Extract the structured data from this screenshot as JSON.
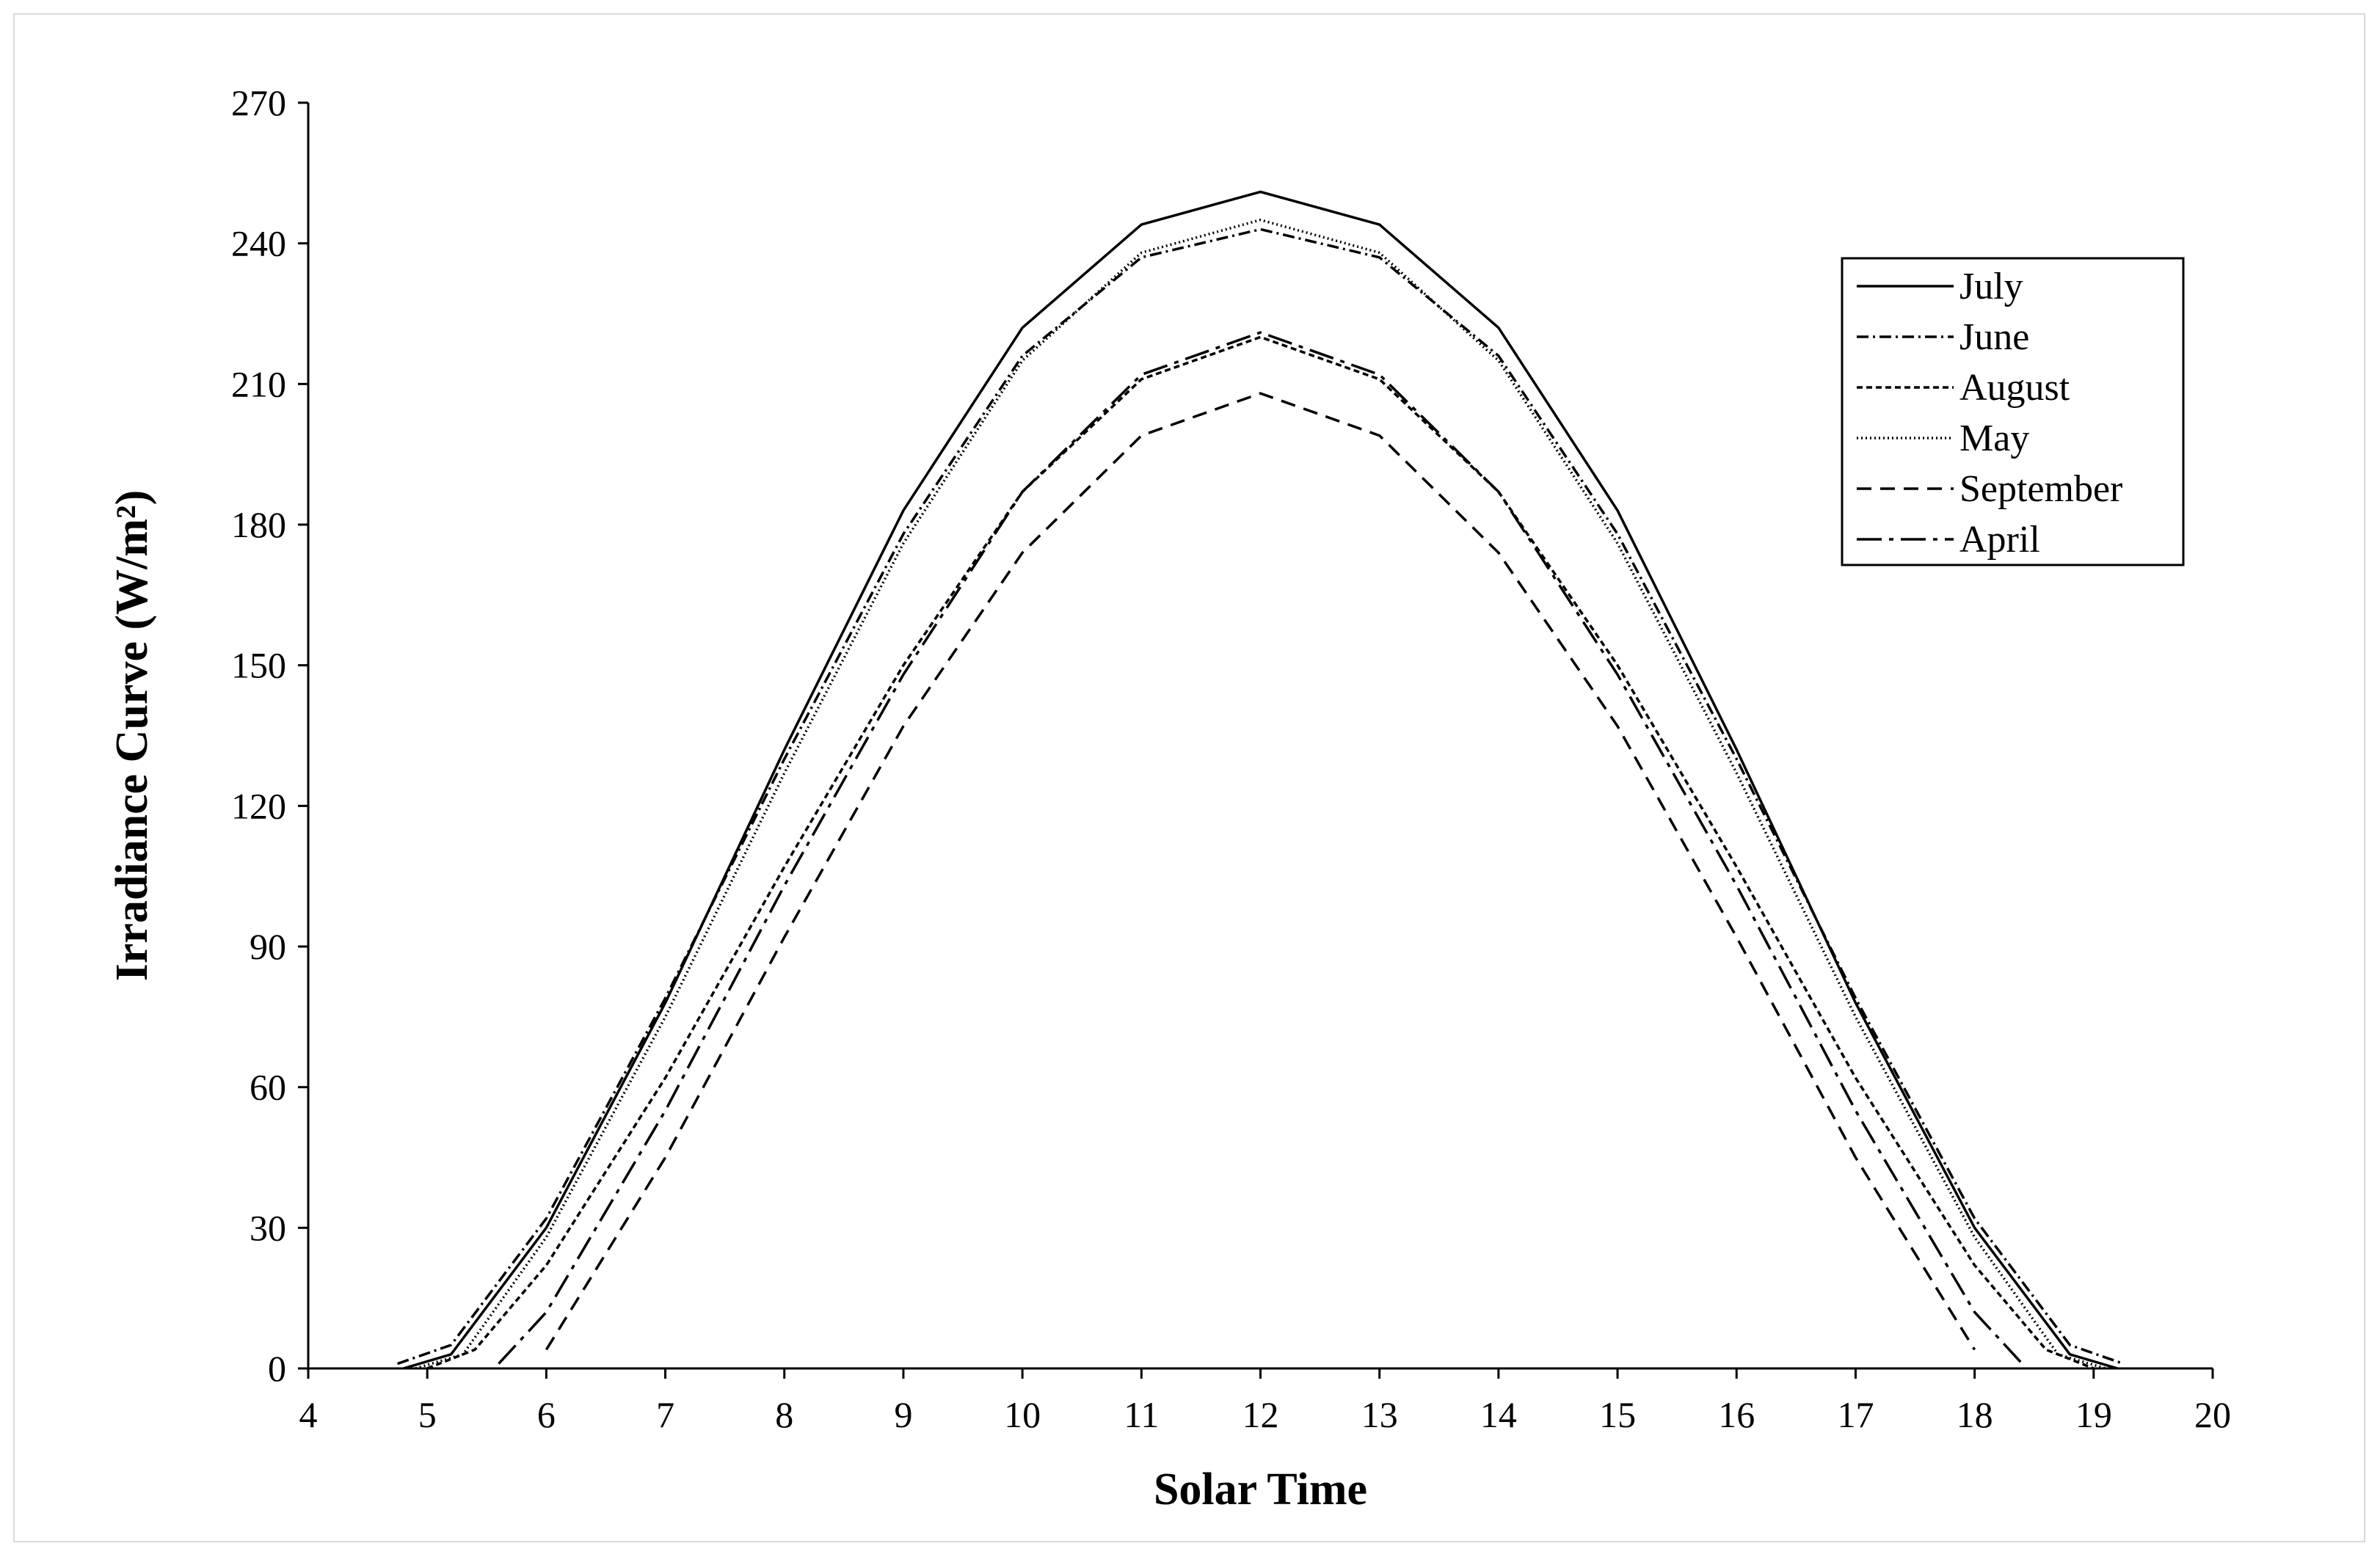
{
  "chart_data": {
    "type": "line",
    "title": "",
    "xlabel": "Solar Time",
    "ylabel": "Irradiance Curve (W/m²)",
    "xlim": [
      4,
      20
    ],
    "ylim": [
      0,
      270
    ],
    "xticks": [
      4,
      5,
      6,
      7,
      8,
      9,
      10,
      11,
      12,
      13,
      14,
      15,
      16,
      17,
      18,
      19,
      20
    ],
    "yticks": [
      0,
      30,
      60,
      90,
      120,
      150,
      180,
      210,
      240,
      270
    ],
    "grid": false,
    "legend_position": "top-right",
    "series": [
      {
        "name": "July",
        "dash": "solid",
        "values": [
          [
            4.8,
            0
          ],
          [
            5.2,
            3
          ],
          [
            6,
            30
          ],
          [
            7,
            78
          ],
          [
            8,
            132
          ],
          [
            9,
            183
          ],
          [
            10,
            222
          ],
          [
            11,
            244
          ],
          [
            12,
            251
          ],
          [
            13,
            244
          ],
          [
            14,
            222
          ],
          [
            15,
            183
          ],
          [
            16,
            132
          ],
          [
            17,
            78
          ],
          [
            18,
            30
          ],
          [
            18.8,
            3
          ],
          [
            19.2,
            0
          ]
        ]
      },
      {
        "name": "June",
        "dash": "dashdot-fine",
        "values": [
          [
            4.75,
            1
          ],
          [
            5.2,
            5
          ],
          [
            6,
            32
          ],
          [
            7,
            79
          ],
          [
            8,
            130
          ],
          [
            9,
            178
          ],
          [
            10,
            216
          ],
          [
            11,
            237
          ],
          [
            12,
            243
          ],
          [
            13,
            237
          ],
          [
            14,
            216
          ],
          [
            15,
            178
          ],
          [
            16,
            130
          ],
          [
            17,
            79
          ],
          [
            18,
            32
          ],
          [
            18.8,
            5
          ],
          [
            19.25,
            1
          ]
        ]
      },
      {
        "name": "August",
        "dash": "dashed-short",
        "values": [
          [
            5.0,
            0
          ],
          [
            5.4,
            4
          ],
          [
            6,
            22
          ],
          [
            7,
            62
          ],
          [
            8,
            107
          ],
          [
            9,
            150
          ],
          [
            10,
            187
          ],
          [
            11,
            211
          ],
          [
            12,
            220
          ],
          [
            13,
            211
          ],
          [
            14,
            187
          ],
          [
            15,
            150
          ],
          [
            16,
            107
          ],
          [
            17,
            62
          ],
          [
            18,
            22
          ],
          [
            18.6,
            4
          ],
          [
            19.0,
            0
          ]
        ]
      },
      {
        "name": "May",
        "dash": "dotted",
        "values": [
          [
            4.9,
            0
          ],
          [
            5.3,
            3
          ],
          [
            6,
            28
          ],
          [
            7,
            75
          ],
          [
            8,
            127
          ],
          [
            9,
            176
          ],
          [
            10,
            215
          ],
          [
            11,
            238
          ],
          [
            12,
            245
          ],
          [
            13,
            238
          ],
          [
            14,
            215
          ],
          [
            15,
            176
          ],
          [
            16,
            127
          ],
          [
            17,
            75
          ],
          [
            18,
            28
          ],
          [
            18.7,
            3
          ],
          [
            19.1,
            0
          ]
        ]
      },
      {
        "name": "September",
        "dash": "dashed-long",
        "values": [
          [
            6.0,
            4
          ],
          [
            7,
            45
          ],
          [
            8,
            92
          ],
          [
            9,
            137
          ],
          [
            10,
            174
          ],
          [
            11,
            199
          ],
          [
            12,
            208
          ],
          [
            13,
            199
          ],
          [
            14,
            174
          ],
          [
            15,
            137
          ],
          [
            16,
            92
          ],
          [
            17,
            45
          ],
          [
            18.0,
            4
          ]
        ]
      },
      {
        "name": "April",
        "dash": "dashdot-long",
        "values": [
          [
            5.6,
            1
          ],
          [
            6,
            12
          ],
          [
            7,
            55
          ],
          [
            8,
            103
          ],
          [
            9,
            148
          ],
          [
            10,
            187
          ],
          [
            11,
            212
          ],
          [
            12,
            221
          ],
          [
            13,
            212
          ],
          [
            14,
            187
          ],
          [
            15,
            148
          ],
          [
            16,
            103
          ],
          [
            17,
            55
          ],
          [
            18,
            12
          ],
          [
            18.4,
            1
          ]
        ]
      }
    ]
  }
}
